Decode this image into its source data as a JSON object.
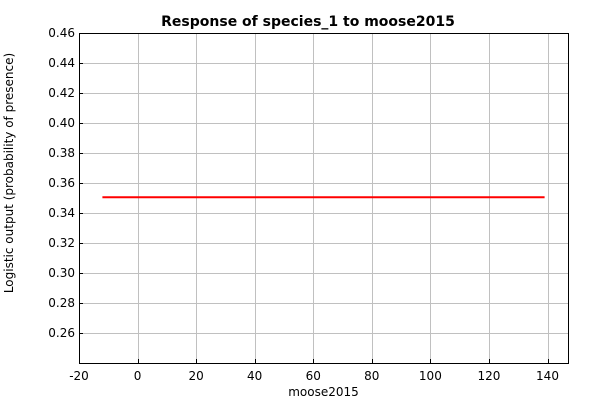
{
  "chart_data": {
    "type": "line",
    "title": "Response of species_1 to moose2015",
    "xlabel": "moose2015",
    "ylabel": "Logistic output (probability of presence)",
    "xlim": [
      -20,
      147
    ],
    "ylim": [
      0.24,
      0.46
    ],
    "x_ticks": [
      -20,
      0,
      20,
      40,
      60,
      80,
      100,
      120,
      140
    ],
    "x_tick_labels": [
      "-20",
      "0",
      "20",
      "40",
      "60",
      "80",
      "100",
      "120",
      "140"
    ],
    "y_ticks": [
      0.26,
      0.28,
      0.3,
      0.32,
      0.34,
      0.36,
      0.38,
      0.4,
      0.42,
      0.44,
      0.46
    ],
    "y_tick_labels": [
      "0.26",
      "0.28",
      "0.30",
      "0.32",
      "0.34",
      "0.36",
      "0.38",
      "0.40",
      "0.42",
      "0.44",
      "0.46"
    ],
    "grid": true,
    "series": [
      {
        "color": "#ff0000",
        "x": [
          -12,
          139
        ],
        "y": [
          0.3505,
          0.3505
        ]
      }
    ]
  }
}
